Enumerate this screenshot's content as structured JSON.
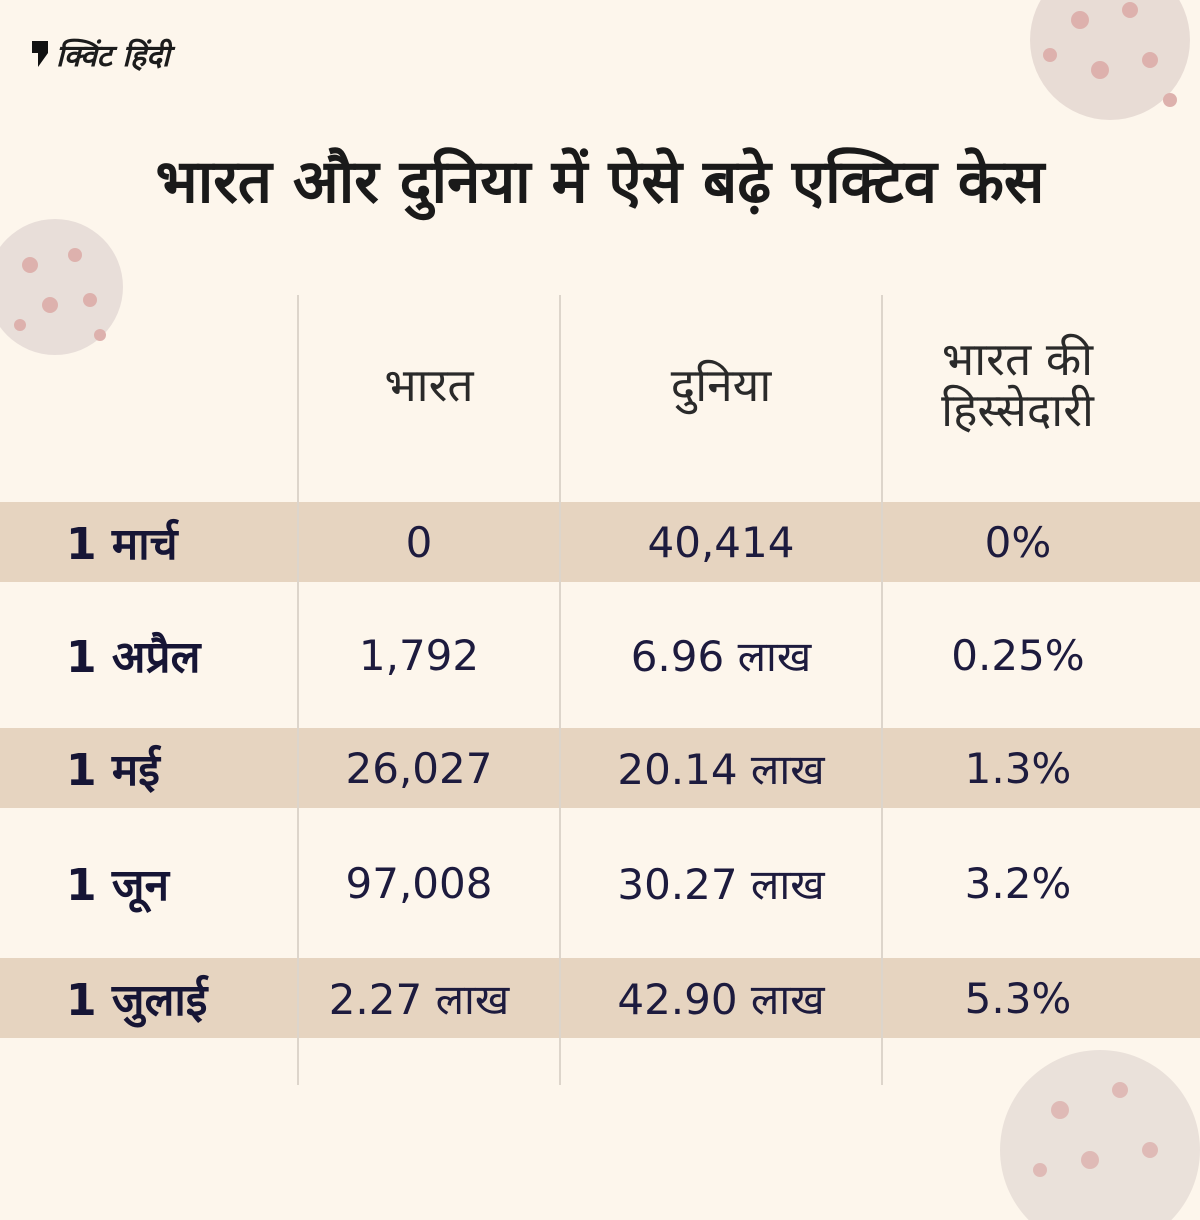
{
  "brand": {
    "name": "क्विंट हिंदी"
  },
  "chart_data": {
    "type": "table",
    "title": "भारत और दुनिया में ऐसे बढ़े एक्टिव केस",
    "columns": [
      "",
      "भारत",
      "दुनिया",
      "भारत की हिस्सेदारी"
    ],
    "rows": [
      [
        "1 मार्च",
        "0",
        "40,414",
        "0%"
      ],
      [
        "1 अप्रैल",
        "1,792",
        "6.96 लाख",
        "0.25%"
      ],
      [
        "1 मई",
        "26,027",
        "20.14 लाख",
        "1.3%"
      ],
      [
        "1 जून",
        "97,008",
        "30.27 लाख",
        "3.2%"
      ],
      [
        "1 जुलाई",
        "2.27 लाख",
        "42.90 लाख",
        "5.3%"
      ]
    ]
  },
  "colors": {
    "band": "#e6d4c0",
    "background": "#fdf6ec",
    "text": "#1d1b3e"
  }
}
